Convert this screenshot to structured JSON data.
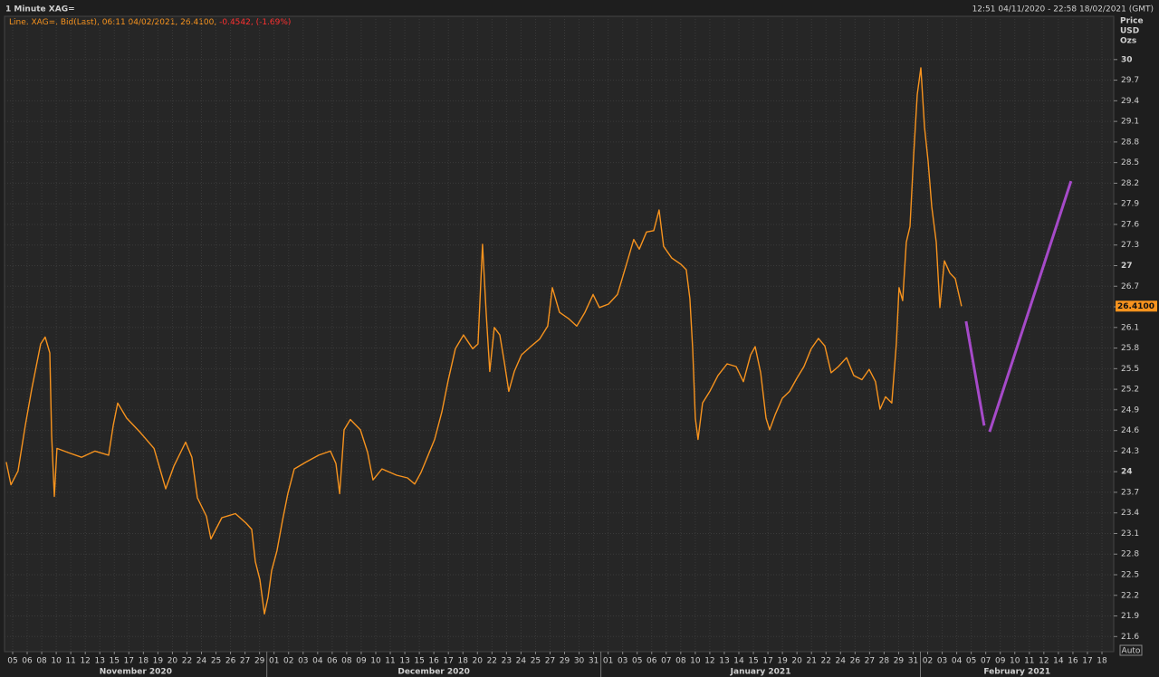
{
  "chart_data": {
    "type": "line",
    "title": "1 Minute XAG=",
    "range_text": "12:51 04/11/2020 - 22:58 18/02/2021 (GMT)",
    "legend": {
      "main": "Line, XAG=, Bid(Last), 06:11 04/02/2021, 26.4100,",
      "change": "-0.4542, (-1.69%)"
    },
    "y_axis_label": [
      "Price",
      "USD",
      "Ozs"
    ],
    "auto_label": "Auto",
    "categories": [
      "05",
      "06",
      "08",
      "10",
      "11",
      "12",
      "13",
      "15",
      "17",
      "18",
      "19",
      "20",
      "22",
      "24",
      "25",
      "26",
      "27",
      "29",
      "01",
      "02",
      "03",
      "04",
      "06",
      "08",
      "09",
      "10",
      "11",
      "13",
      "15",
      "16",
      "17",
      "18",
      "20",
      "22",
      "23",
      "24",
      "25",
      "27",
      "29",
      "30",
      "31",
      "01",
      "03",
      "05",
      "06",
      "07",
      "08",
      "10",
      "12",
      "13",
      "14",
      "15",
      "17",
      "19",
      "20",
      "21",
      "22",
      "24",
      "26",
      "27",
      "28",
      "29",
      "31",
      "02",
      "03",
      "04",
      "05",
      "07",
      "09",
      "10",
      "11",
      "12",
      "14",
      "16",
      "17",
      "18"
    ],
    "months": [
      "November 2020",
      "December 2020",
      "January 2021",
      "February 2021"
    ],
    "xlim": [
      -0.56,
      75.81
    ],
    "ylim": [
      21.38,
      30.63
    ],
    "yticks": [
      30,
      29.7,
      29.4,
      29.1,
      28.8,
      28.5,
      28.2,
      27.9,
      27.6,
      27.3,
      27,
      26.7,
      26.4,
      26.1,
      25.8,
      25.5,
      25.2,
      24.9,
      24.6,
      24.3,
      24,
      23.7,
      23.4,
      23.1,
      22.8,
      22.5,
      22.2,
      21.9,
      21.6
    ],
    "grid": true,
    "last_price": {
      "value": 26.41,
      "label": "26.4100"
    },
    "series": [
      {
        "color": "#f7931e",
        "x": [
          -0.44,
          -0.12,
          0.37,
          0.87,
          1.31,
          1.93,
          2.24,
          2.56,
          2.68,
          2.87,
          3.05,
          3.8,
          4.74,
          5.67,
          6.61,
          6.92,
          7.23,
          7.85,
          8.79,
          9.73,
          10.54,
          11.1,
          11.91,
          12.34,
          12.72,
          13.34,
          13.65,
          14.4,
          15.34,
          16.08,
          16.46,
          16.71,
          17.02,
          17.33,
          17.58,
          17.83,
          18.2,
          18.58,
          18.95,
          19.39,
          20.2,
          21.07,
          21.88,
          22.26,
          22.51,
          22.82,
          23.25,
          23.94,
          24.44,
          24.81,
          25.43,
          26.43,
          27.18,
          27.68,
          28.12,
          28.55,
          29.05,
          29.55,
          29.99,
          30.48,
          31.04,
          31.67,
          32.04,
          32.35,
          32.6,
          32.85,
          33.16,
          33.54,
          33.85,
          34.16,
          34.54,
          35.03,
          35.66,
          36.28,
          36.84,
          37.16,
          37.65,
          38.27,
          38.84,
          39.4,
          39.96,
          40.4,
          41.02,
          41.64,
          42.02,
          42.39,
          42.76,
          43.14,
          43.64,
          44.14,
          44.51,
          44.82,
          45.38,
          46.01,
          46.38,
          46.63,
          46.82,
          47.0,
          47.19,
          47.5,
          48.0,
          48.56,
          49.19,
          49.81,
          50.31,
          50.81,
          51.12,
          51.5,
          51.87,
          52.12,
          52.5,
          52.99,
          53.49,
          53.99,
          54.48,
          54.98,
          55.48,
          55.92,
          56.35,
          56.85,
          57.41,
          57.91,
          58.47,
          58.97,
          59.41,
          59.72,
          60.1,
          60.53,
          60.84,
          61.03,
          61.28,
          61.53,
          61.78,
          62.03,
          62.28,
          62.53,
          62.78,
          63.03,
          63.28,
          63.59,
          63.84,
          64.15,
          64.53,
          64.9,
          65.33
        ],
        "values": [
          24.14,
          23.81,
          24.01,
          24.67,
          25.2,
          25.86,
          25.96,
          25.73,
          24.54,
          23.64,
          24.34,
          24.28,
          24.21,
          24.3,
          24.24,
          24.67,
          25.0,
          24.78,
          24.57,
          24.34,
          23.75,
          24.08,
          24.43,
          24.21,
          23.62,
          23.35,
          23.02,
          23.33,
          23.39,
          23.25,
          23.16,
          22.69,
          22.43,
          21.93,
          22.17,
          22.56,
          22.85,
          23.29,
          23.68,
          24.04,
          24.14,
          24.24,
          24.3,
          24.12,
          23.68,
          24.61,
          24.76,
          24.61,
          24.28,
          23.88,
          24.04,
          23.95,
          23.91,
          23.82,
          23.99,
          24.21,
          24.47,
          24.87,
          25.33,
          25.79,
          25.99,
          25.79,
          25.86,
          27.31,
          26.32,
          25.46,
          26.1,
          25.99,
          25.6,
          25.17,
          25.46,
          25.7,
          25.82,
          25.93,
          26.12,
          26.68,
          26.32,
          26.23,
          26.12,
          26.32,
          26.58,
          26.39,
          26.44,
          26.58,
          26.85,
          27.11,
          27.38,
          27.24,
          27.49,
          27.51,
          27.81,
          27.28,
          27.11,
          27.02,
          26.94,
          26.52,
          25.79,
          24.78,
          24.47,
          25.0,
          25.17,
          25.4,
          25.57,
          25.53,
          25.31,
          25.7,
          25.82,
          25.44,
          24.78,
          24.61,
          24.83,
          25.07,
          25.17,
          25.36,
          25.53,
          25.79,
          25.94,
          25.83,
          25.44,
          25.53,
          25.66,
          25.4,
          25.34,
          25.49,
          25.31,
          24.91,
          25.09,
          25.0,
          25.86,
          26.68,
          26.49,
          27.34,
          27.57,
          28.6,
          29.49,
          29.88,
          29.02,
          28.52,
          27.86,
          27.34,
          26.39,
          27.07,
          26.89,
          26.81,
          26.41
        ]
      },
      {
        "color": "#a64ac9",
        "x": [
          65.64,
          66.89,
          null,
          67.26,
          72.87
        ],
        "values": [
          26.19,
          24.67,
          null,
          24.58,
          28.23
        ]
      }
    ]
  }
}
